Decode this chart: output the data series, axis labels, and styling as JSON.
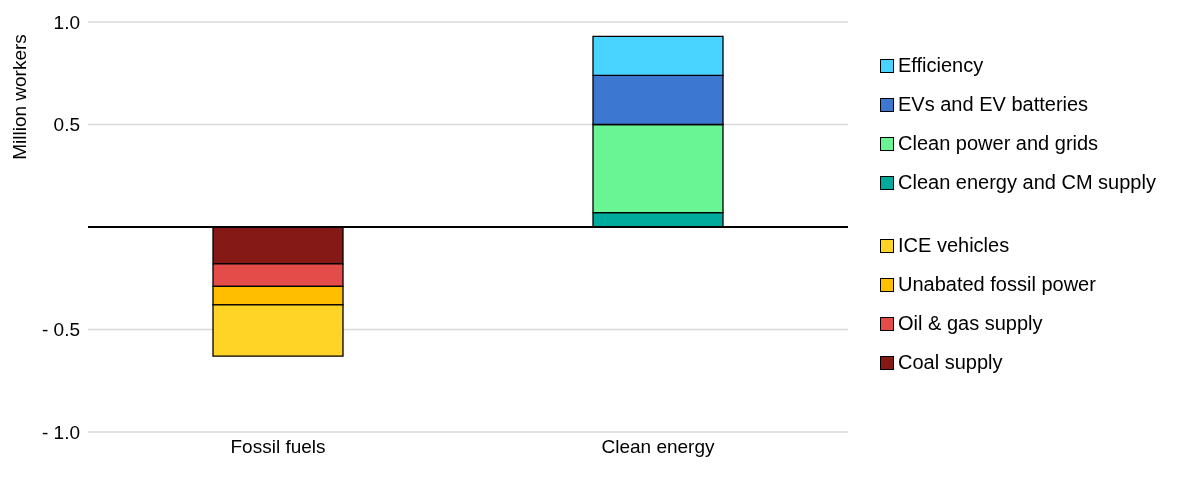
{
  "chart_data": {
    "type": "bar",
    "ylabel": "Million workers",
    "categories": [
      "Fossil fuels",
      "Clean energy"
    ],
    "stacked": true,
    "ylim": [
      -1,
      1
    ],
    "yticks": [
      {
        "value": -1,
        "label": "- 1.0"
      },
      {
        "value": -0.5,
        "label": "- 0.5"
      },
      {
        "value": 0,
        "label": null
      },
      {
        "value": 0.5,
        "label": "0.5"
      },
      {
        "value": 1,
        "label": "1.0"
      }
    ],
    "grid": "y",
    "legend": "right",
    "series": [
      {
        "name": "Coal supply",
        "color": "#841916",
        "values": [
          -0.18,
          null
        ]
      },
      {
        "name": "Oil & gas supply",
        "color": "#e44c4a",
        "values": [
          -0.11,
          null
        ]
      },
      {
        "name": "Unabated fossil power",
        "color": "#ffbf00",
        "values": [
          -0.09,
          null
        ]
      },
      {
        "name": "ICE vehicles",
        "color": "#ffd426",
        "values": [
          -0.25,
          null
        ]
      },
      {
        "name": "Clean energy and CM supply",
        "color": "#00aa9c",
        "values": [
          null,
          0.07
        ]
      },
      {
        "name": "Clean power and grids",
        "color": "#6af595",
        "values": [
          null,
          0.43
        ]
      },
      {
        "name": "EVs and EV batteries",
        "color": "#3c78d2",
        "values": [
          null,
          0.24
        ]
      },
      {
        "name": "Efficiency",
        "color": "#49d3ff",
        "values": [
          null,
          0.19
        ]
      }
    ]
  }
}
